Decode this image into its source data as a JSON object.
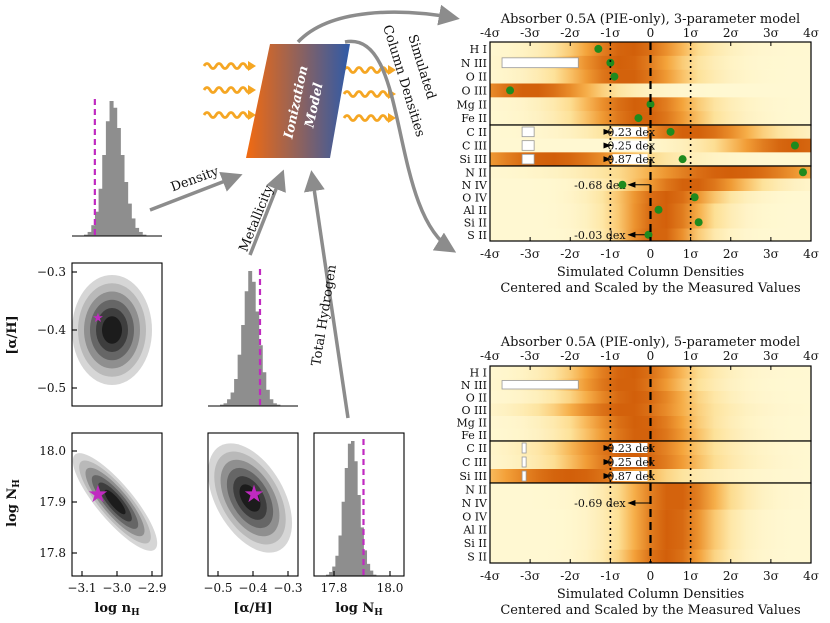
{
  "corner": {
    "hist_nH": {
      "values": [
        0.01,
        0.03,
        0.08,
        0.18,
        0.35,
        0.6,
        0.85,
        1.0,
        0.95,
        0.8,
        0.6,
        0.4,
        0.24,
        0.13,
        0.06,
        0.03,
        0.01
      ],
      "marker": -3.05
    },
    "hist_aH": {
      "values": [
        0.01,
        0.02,
        0.05,
        0.1,
        0.2,
        0.38,
        0.6,
        0.85,
        1.0,
        0.92,
        0.7,
        0.45,
        0.25,
        0.12,
        0.05,
        0.02,
        0.01
      ],
      "marker": -0.36
    },
    "hist_NH": {
      "values": [
        0.01,
        0.03,
        0.07,
        0.15,
        0.3,
        0.55,
        0.8,
        0.98,
        1.0,
        0.85,
        0.6,
        0.36,
        0.19,
        0.09,
        0.04,
        0.01
      ],
      "marker": 17.93
    },
    "axes": {
      "y_aH_ticks": [
        "−0.3",
        "−0.4",
        "−0.5"
      ],
      "y_NH_ticks": [
        "18.0",
        "17.9",
        "17.8"
      ],
      "x_nH_ticks": [
        "−3.1",
        "−3.0",
        "−2.9"
      ],
      "x_aH_ticks": [
        "−0.5",
        "−0.4",
        "−0.3"
      ],
      "x_NH_ticks": [
        "17.8",
        "18.0"
      ],
      "ylabel_aH": "[α/H]",
      "ylabel_NH": "log N",
      "ylabel_NH_sub": "H",
      "xlabel_nH": "log n",
      "xlabel_nH_sub": "H",
      "xlabel_aH": "[α/H]",
      "xlabel_NH": "log N",
      "xlabel_NH_sub": "H"
    },
    "star_marker": "★"
  },
  "model": {
    "box_label_1": "Ionization",
    "box_label_2": "Model",
    "arrow_density": "Density",
    "arrow_metallicity": "Metallicity",
    "arrow_hydrogen": "Total Hydrogen",
    "arrow_simulated_1": "Simulated",
    "arrow_simulated_2": "Column Densities",
    "colors": {
      "box_left": "#f26a10",
      "box_right": "#2e5aa8",
      "wave": "#f5a623",
      "arrow": "#8c8c8c"
    }
  },
  "panels": [
    {
      "title": "Absorber 0.5A (PIE-only), 3-parameter model",
      "sigma_ticks": [
        "-4σ",
        "-3σ",
        "-2σ",
        "-1σ",
        "0",
        "1σ",
        "2σ",
        "3σ",
        "4σ"
      ],
      "xlabel_1": "Simulated Column Densities",
      "xlabel_2": "Centered and Scaled by the Measured Values",
      "groups": [
        {
          "rows": [
            {
              "ion": "H I",
              "dot": -1.3,
              "peak": -0.5,
              "width": 1.2
            },
            {
              "ion": "N III",
              "dot": -1.0,
              "peak": -0.7,
              "width": 1.2,
              "box": [
                -3.7,
                -1.8
              ]
            },
            {
              "ion": "O II",
              "dot": -0.9,
              "peak": -0.6,
              "width": 1.2
            },
            {
              "ion": "O III",
              "dot": -3.5,
              "peak": -3.0,
              "width": 1.4
            },
            {
              "ion": "Mg II",
              "dot": 0.0,
              "peak": -0.3,
              "width": 1.2
            },
            {
              "ion": "Fe II",
              "dot": -0.3,
              "peak": -0.2,
              "width": 1.2
            }
          ]
        },
        {
          "rows": [
            {
              "ion": "C II",
              "dot": 0.5,
              "peak": 1.0,
              "width": 1.4,
              "arrow": "0.23 dex",
              "box": [
                -3.2,
                -2.9
              ]
            },
            {
              "ion": "C III",
              "dot": 3.6,
              "peak": 3.6,
              "width": 1.4,
              "arrow": "0.25 dex",
              "box": [
                -3.2,
                -2.9
              ]
            },
            {
              "ion": "Si III",
              "dot": 0.8,
              "peak": -2.5,
              "width": 1.8,
              "arrow": "0.87 dex",
              "box": [
                -3.2,
                -2.9
              ]
            }
          ]
        },
        {
          "rows": [
            {
              "ion": "N II",
              "dot": 3.8,
              "peak": 2.0,
              "width": 2.0
            },
            {
              "ion": "N IV",
              "dot": -0.7,
              "peak": 1.0,
              "width": 1.2,
              "limit": "-0.68 dex"
            },
            {
              "ion": "O IV",
              "dot": 1.1,
              "peak": 0.4,
              "width": 1.0
            },
            {
              "ion": "Al II",
              "dot": 0.2,
              "peak": 0.3,
              "width": 0.9
            },
            {
              "ion": "Si II",
              "dot": 1.2,
              "peak": 0.3,
              "width": 0.9
            },
            {
              "ion": "S II",
              "dot": -0.05,
              "peak": 0.2,
              "width": 0.8,
              "limit": "-0.03 dex"
            }
          ]
        }
      ]
    },
    {
      "title": "Absorber 0.5A (PIE-only), 5-parameter model",
      "sigma_ticks": [
        "-4σ",
        "-3σ",
        "-2σ",
        "-1σ",
        "0",
        "1σ",
        "2σ",
        "3σ",
        "4σ"
      ],
      "xlabel_1": "Simulated Column Densities",
      "xlabel_2": "Centered and Scaled by the Measured Values",
      "groups": [
        {
          "rows": [
            {
              "ion": "H I",
              "peak": -0.5,
              "width": 1.2
            },
            {
              "ion": "N III",
              "peak": -0.6,
              "width": 1.2,
              "box": [
                -3.7,
                -1.8
              ]
            },
            {
              "ion": "O II",
              "peak": -0.4,
              "width": 1.2
            },
            {
              "ion": "O III",
              "peak": -0.6,
              "width": 1.4
            },
            {
              "ion": "Mg II",
              "peak": -0.3,
              "width": 1.2
            },
            {
              "ion": "Fe II",
              "peak": -0.2,
              "width": 1.2
            }
          ]
        },
        {
          "rows": [
            {
              "ion": "C II",
              "peak": -0.5,
              "width": 1.4,
              "arrow": "0.23 dex",
              "box": [
                -3.2,
                -3.1
              ]
            },
            {
              "ion": "C III",
              "peak": -0.4,
              "width": 1.4,
              "arrow": "0.25 dex",
              "box": [
                -3.2,
                -3.1
              ]
            },
            {
              "ion": "Si III",
              "peak": -2.0,
              "width": 1.8,
              "arrow": "0.87 dex",
              "box": [
                -3.2,
                -3.1
              ]
            }
          ]
        },
        {
          "rows": [
            {
              "ion": "N II",
              "peak": 0.6,
              "width": 1.0
            },
            {
              "ion": "N IV",
              "peak": 0.6,
              "width": 1.0,
              "limit": "-0.69 dex"
            },
            {
              "ion": "O IV",
              "peak": 0.5,
              "width": 0.9
            },
            {
              "ion": "Al II",
              "peak": 0.5,
              "width": 0.9
            },
            {
              "ion": "Si II",
              "peak": 0.5,
              "width": 0.9
            },
            {
              "ion": "S II",
              "peak": 0.4,
              "width": 0.9
            }
          ]
        }
      ]
    }
  ]
}
